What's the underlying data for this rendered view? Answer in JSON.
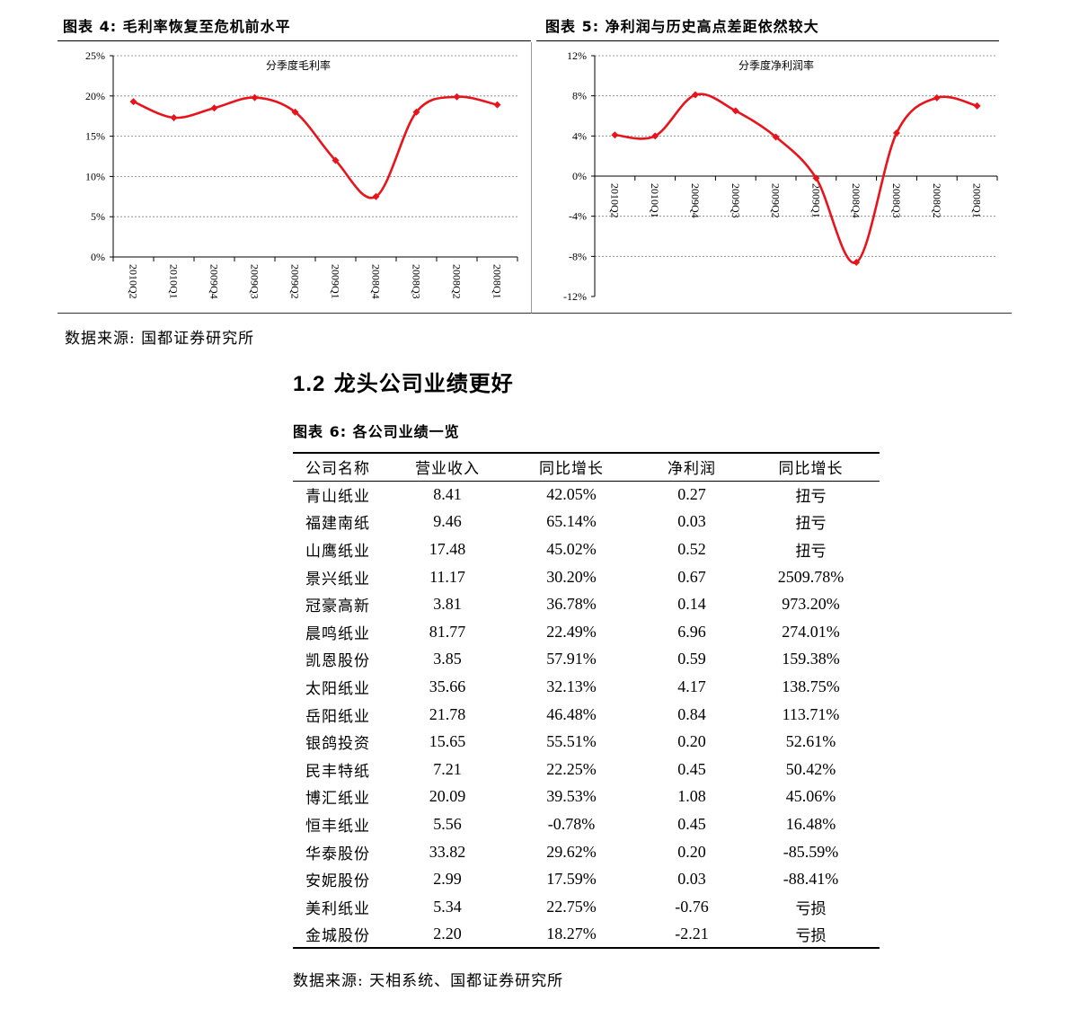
{
  "fig4": {
    "caption": "图表 4: 毛利率恢复至危机前水平"
  },
  "fig5": {
    "caption": "图表 5: 净利润与历史高点差距依然较大"
  },
  "source_top": "数据来源: 国都证券研究所",
  "section_title": {
    "number": "1.2",
    "text": "龙头公司业绩更好"
  },
  "fig6": {
    "caption": "图表 6: 各公司业绩一览"
  },
  "table": {
    "headers": [
      "公司名称",
      "营业收入",
      "同比增长",
      "净利润",
      "同比增长"
    ],
    "rows": [
      [
        "青山纸业",
        "8.41",
        "42.05%",
        "0.27",
        "扭亏"
      ],
      [
        "福建南纸",
        "9.46",
        "65.14%",
        "0.03",
        "扭亏"
      ],
      [
        "山鹰纸业",
        "17.48",
        "45.02%",
        "0.52",
        "扭亏"
      ],
      [
        "景兴纸业",
        "11.17",
        "30.20%",
        "0.67",
        "2509.78%"
      ],
      [
        "冠豪高新",
        "3.81",
        "36.78%",
        "0.14",
        "973.20%"
      ],
      [
        "晨鸣纸业",
        "81.77",
        "22.49%",
        "6.96",
        "274.01%"
      ],
      [
        "凯恩股份",
        "3.85",
        "57.91%",
        "0.59",
        "159.38%"
      ],
      [
        "太阳纸业",
        "35.66",
        "32.13%",
        "4.17",
        "138.75%"
      ],
      [
        "岳阳纸业",
        "21.78",
        "46.48%",
        "0.84",
        "113.71%"
      ],
      [
        "银鸽投资",
        "15.65",
        "55.51%",
        "0.20",
        "52.61%"
      ],
      [
        "民丰特纸",
        "7.21",
        "22.25%",
        "0.45",
        "50.42%"
      ],
      [
        "博汇纸业",
        "20.09",
        "39.53%",
        "1.08",
        "45.06%"
      ],
      [
        "恒丰纸业",
        "5.56",
        "-0.78%",
        "0.45",
        "16.48%"
      ],
      [
        "华泰股份",
        "33.82",
        "29.62%",
        "0.20",
        "-85.59%"
      ],
      [
        "安妮股份",
        "2.99",
        "17.59%",
        "0.03",
        "-88.41%"
      ],
      [
        "美利纸业",
        "5.34",
        "22.75%",
        "-0.76",
        "亏损"
      ],
      [
        "金城股份",
        "2.20",
        "18.27%",
        "-2.21",
        "亏损"
      ]
    ]
  },
  "source_bottom": "数据来源: 天相系统、国都证券研究所",
  "chart_data": [
    {
      "type": "line",
      "title": "分季度毛利率",
      "categories": [
        "2010Q2",
        "2010Q1",
        "2009Q4",
        "2009Q3",
        "2009Q2",
        "2009Q1",
        "2008Q4",
        "2008Q3",
        "2008Q2",
        "2008Q1"
      ],
      "values": [
        19.3,
        17.3,
        18.5,
        19.8,
        18.0,
        12.0,
        7.5,
        18.0,
        19.9,
        18.9
      ],
      "unit": "%",
      "ylim": [
        0,
        25
      ],
      "yticks": [
        "0%",
        "5%",
        "10%",
        "15%",
        "20%",
        "25%"
      ],
      "grid": true,
      "color": "#e8141c"
    },
    {
      "type": "line",
      "title": "分季度净利润率",
      "categories": [
        "2010Q2",
        "2010Q1",
        "2009Q4",
        "2009Q3",
        "2009Q2",
        "2009Q1",
        "2008Q4",
        "2008Q3",
        "2008Q2",
        "2008Q1"
      ],
      "values": [
        4.1,
        4.0,
        8.1,
        6.5,
        3.9,
        -0.2,
        -8.6,
        4.3,
        7.8,
        7.0
      ],
      "unit": "%",
      "ylim": [
        -12,
        12
      ],
      "yticks": [
        "-12%",
        "-8%",
        "-4%",
        "0%",
        "4%",
        "8%",
        "12%"
      ],
      "grid": true,
      "color": "#e8141c"
    }
  ]
}
